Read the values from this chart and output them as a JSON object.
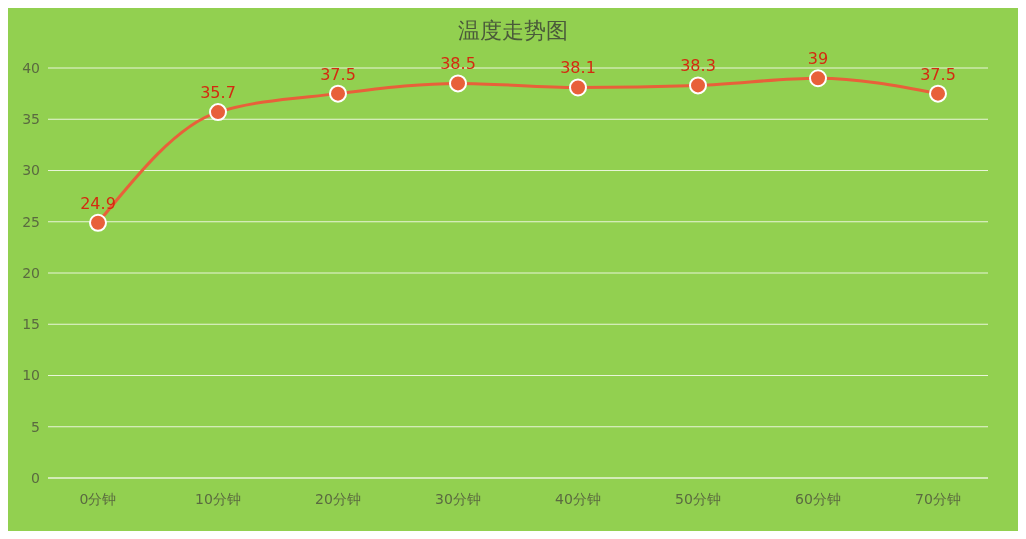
{
  "chart_data": {
    "type": "line",
    "title": "温度走势图",
    "categories": [
      "0分钟",
      "10分钟",
      "20分钟",
      "30分钟",
      "40分钟",
      "50分钟",
      "60分钟",
      "70分钟"
    ],
    "series": [
      {
        "color": "#e8603a",
        "values": [
          24.9,
          35.7,
          37.5,
          38.5,
          38.1,
          38.3,
          39,
          37.5
        ]
      }
    ],
    "ylim": [
      0,
      40
    ],
    "yticks": [
      0,
      5,
      10,
      15,
      20,
      25,
      30,
      35,
      40
    ],
    "grid": "y",
    "marker": "circle",
    "line_style": "solid",
    "data_labels": true,
    "legend": false
  }
}
